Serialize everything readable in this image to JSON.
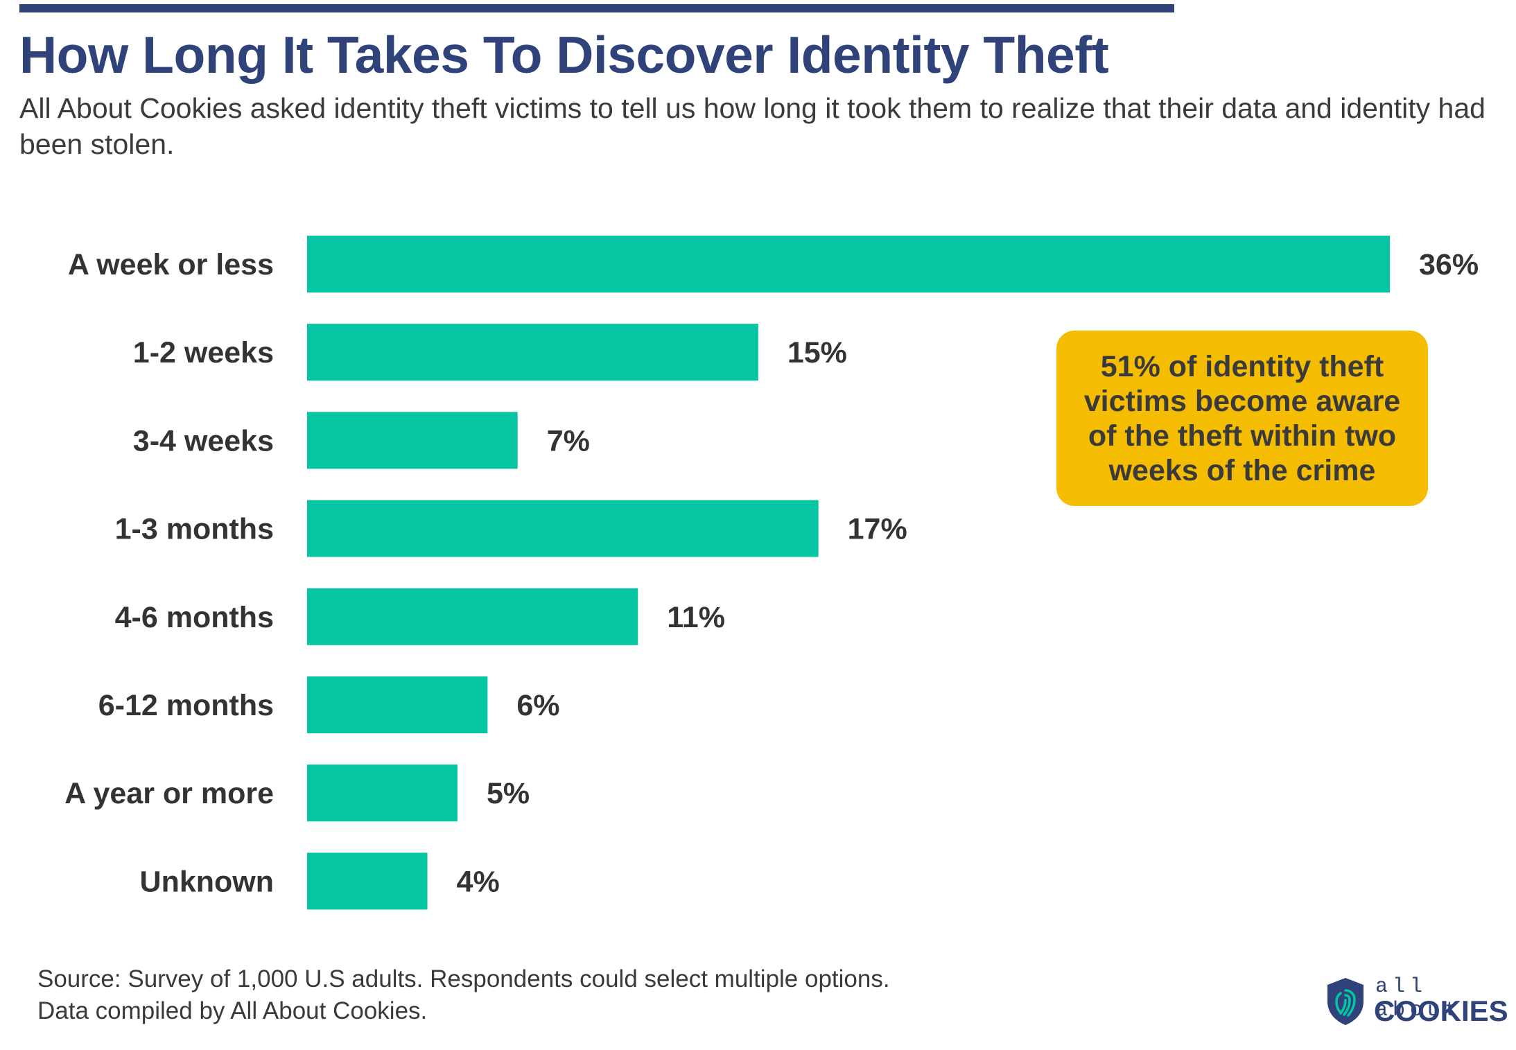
{
  "colors": {
    "bar": "#05c5a3",
    "title": "#2f4279",
    "text": "#333333",
    "callout": "#f5bd02",
    "logo": "#2f4279"
  },
  "header": {
    "title": "How Long It Takes To Discover Identity Theft",
    "subtitle": "All About Cookies asked identity theft victims to tell us how long it took them to realize that their data and identity had been stolen."
  },
  "chart_data": {
    "type": "bar",
    "orientation": "horizontal",
    "categories": [
      "A week or less",
      "1-2 weeks",
      "3-4 weeks",
      "1-3 months",
      "4-6 months",
      "6-12 months",
      "A year or more",
      "Unknown"
    ],
    "values": [
      36,
      15,
      7,
      17,
      11,
      6,
      5,
      4
    ],
    "value_labels": [
      "36%",
      "15%",
      "7%",
      "17%",
      "11%",
      "6%",
      "5%",
      "4%"
    ],
    "unit": "%",
    "xlim": [
      0,
      36
    ],
    "grid": false,
    "legend": "none"
  },
  "callout": {
    "text": "51% of identity theft victims become aware of the theft within two weeks of the crime"
  },
  "footer": {
    "source_line1": "Source: Survey of 1,000 U.S adults. Respondents could select multiple options.",
    "source_line2": "Data compiled by All About Cookies."
  },
  "logo": {
    "icon": "shield-fingerprint-icon",
    "top_text": "all about",
    "bottom_text": "COOKIES"
  }
}
